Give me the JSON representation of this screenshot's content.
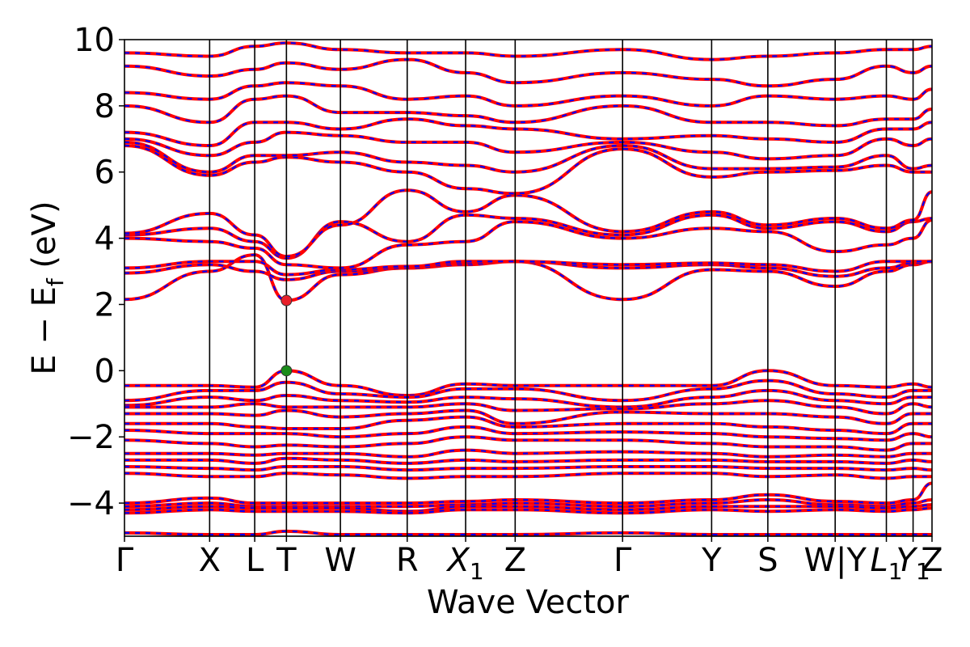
{
  "chart_data": {
    "type": "line",
    "xlabel": "Wave Vector",
    "ylabel": "E − E",
    "ylabel_sub": "f",
    "ylabel_unit": " (eV)",
    "ylim": [
      -5,
      10
    ],
    "yticks": [
      {
        "value": 10,
        "label": "10"
      },
      {
        "value": 8,
        "label": "8"
      },
      {
        "value": 6,
        "label": "6"
      },
      {
        "value": 4,
        "label": "4"
      },
      {
        "value": 2,
        "label": "2"
      },
      {
        "value": 0,
        "label": "0"
      },
      {
        "value": -2,
        "label": "−2"
      },
      {
        "value": -4,
        "label": "−4"
      }
    ],
    "kpath_span": 14.51,
    "kpoints": [
      {
        "label": "Γ",
        "k": 0.0
      },
      {
        "label": "X",
        "k": 1.53
      },
      {
        "label": "L",
        "k": 2.34
      },
      {
        "label": "T",
        "k": 2.91
      },
      {
        "label": "W",
        "k": 3.88
      },
      {
        "label": "R",
        "k": 5.08
      },
      {
        "label": "X",
        "sub": "1",
        "k": 6.13
      },
      {
        "label": "Z",
        "k": 7.02
      },
      {
        "label": "Γ",
        "k": 8.95
      },
      {
        "label": "Y",
        "k": 10.55
      },
      {
        "label": "S",
        "k": 11.56
      },
      {
        "label": "W|Y",
        "k": 12.77
      },
      {
        "label": "L",
        "sub": "1",
        "k": 13.69
      },
      {
        "label": "Y",
        "sub": "1",
        "k": 14.17
      },
      {
        "label": "Z",
        "k": 14.51
      }
    ],
    "series": [
      {
        "color": "#ff0000",
        "style": "solid"
      },
      {
        "color": "#0000ff",
        "style": "dashed"
      }
    ],
    "bands": [
      [
        2.15,
        3.0,
        3.5,
        2.12,
        2.9,
        3.1,
        3.2,
        3.3,
        2.15,
        3.05,
        3.0,
        2.55,
        3.0,
        3.2,
        3.3
      ],
      [
        2.95,
        3.2,
        3.0,
        2.75,
        3.0,
        3.1,
        3.25,
        3.3,
        3.1,
        3.2,
        3.1,
        2.85,
        3.1,
        3.25,
        3.3
      ],
      [
        3.1,
        3.3,
        3.3,
        2.9,
        3.05,
        3.15,
        3.3,
        3.3,
        3.2,
        3.25,
        3.2,
        3.0,
        3.3,
        3.3,
        3.3
      ],
      [
        4.0,
        3.9,
        3.7,
        3.2,
        3.1,
        3.8,
        3.9,
        4.5,
        4.0,
        4.3,
        4.2,
        3.6,
        3.8,
        4.0,
        4.55
      ],
      [
        4.1,
        4.3,
        3.9,
        3.4,
        4.5,
        3.9,
        4.7,
        4.6,
        4.1,
        4.7,
        4.3,
        4.5,
        4.2,
        4.5,
        4.6
      ],
      [
        4.15,
        4.75,
        4.1,
        3.45,
        4.4,
        5.45,
        4.8,
        5.3,
        4.2,
        4.8,
        4.4,
        4.6,
        4.3,
        4.55,
        5.4
      ],
      [
        6.8,
        5.9,
        6.3,
        6.45,
        6.3,
        6.0,
        5.5,
        5.35,
        6.7,
        5.85,
        6.0,
        6.05,
        6.2,
        6.0,
        6.0
      ],
      [
        6.9,
        6.0,
        6.5,
        6.5,
        6.6,
        6.3,
        6.2,
        6.0,
        6.8,
        6.1,
        6.1,
        6.15,
        6.5,
        6.1,
        6.2
      ],
      [
        7.0,
        6.5,
        6.9,
        7.2,
        7.1,
        6.9,
        6.9,
        6.6,
        6.9,
        6.6,
        6.4,
        6.5,
        7.0,
        6.8,
        7.0
      ],
      [
        7.2,
        6.8,
        7.5,
        7.5,
        7.3,
        7.6,
        7.4,
        7.3,
        7.0,
        7.1,
        7.0,
        6.9,
        7.3,
        7.3,
        7.5
      ],
      [
        8.0,
        7.5,
        8.2,
        8.3,
        7.8,
        7.8,
        7.7,
        7.5,
        8.0,
        7.5,
        7.5,
        7.4,
        7.6,
        7.6,
        7.9
      ],
      [
        8.4,
        8.2,
        8.6,
        8.7,
        8.6,
        8.2,
        8.3,
        8.0,
        8.3,
        8.0,
        8.3,
        8.2,
        8.3,
        8.2,
        8.5
      ],
      [
        9.2,
        8.9,
        9.1,
        9.3,
        9.1,
        9.4,
        9.0,
        8.7,
        9.0,
        8.8,
        8.6,
        8.8,
        9.2,
        9.0,
        9.2
      ],
      [
        9.6,
        9.5,
        9.8,
        9.9,
        9.7,
        9.6,
        9.6,
        9.5,
        9.7,
        9.4,
        9.5,
        9.6,
        9.7,
        9.7,
        9.8
      ],
      [
        -0.45,
        -0.45,
        -0.5,
        0.0,
        -0.45,
        -0.75,
        -0.4,
        -0.45,
        -0.45,
        -0.45,
        0.0,
        -0.45,
        -0.5,
        -0.4,
        -0.5
      ],
      [
        -0.9,
        -0.6,
        -0.6,
        -0.35,
        -0.7,
        -0.8,
        -0.55,
        -0.55,
        -0.9,
        -0.55,
        -0.3,
        -0.7,
        -0.8,
        -0.6,
        -0.6
      ],
      [
        -1.05,
        -0.8,
        -0.9,
        -0.75,
        -0.9,
        -0.95,
        -0.8,
        -0.85,
        -1.1,
        -0.8,
        -0.6,
        -0.9,
        -1.0,
        -0.8,
        -0.8
      ],
      [
        -1.1,
        -1.1,
        -1.0,
        -1.1,
        -1.1,
        -1.1,
        -1.0,
        -1.2,
        -1.15,
        -1.0,
        -0.9,
        -1.1,
        -1.3,
        -1.0,
        -1.1
      ],
      [
        -1.3,
        -1.3,
        -1.35,
        -1.2,
        -1.4,
        -1.3,
        -1.2,
        -1.6,
        -1.25,
        -1.3,
        -1.3,
        -1.4,
        -1.6,
        -1.3,
        -1.3
      ],
      [
        -1.6,
        -1.6,
        -1.7,
        -1.75,
        -1.75,
        -1.5,
        -1.4,
        -1.7,
        -1.6,
        -1.6,
        -1.7,
        -1.8,
        -1.9,
        -1.6,
        -1.6
      ],
      [
        -1.8,
        -1.9,
        -1.9,
        -1.9,
        -2.0,
        -1.9,
        -1.7,
        -1.9,
        -1.85,
        -1.9,
        -2.0,
        -2.05,
        -2.1,
        -1.9,
        -2.0
      ],
      [
        -2.1,
        -2.2,
        -2.3,
        -2.25,
        -2.3,
        -2.2,
        -2.0,
        -2.1,
        -2.1,
        -2.2,
        -2.3,
        -2.3,
        -2.4,
        -2.2,
        -2.2
      ],
      [
        -2.5,
        -2.5,
        -2.55,
        -2.5,
        -2.5,
        -2.6,
        -2.4,
        -2.5,
        -2.45,
        -2.5,
        -2.6,
        -2.55,
        -2.6,
        -2.5,
        -2.5
      ],
      [
        -2.7,
        -2.7,
        -2.8,
        -2.65,
        -2.7,
        -2.8,
        -2.7,
        -2.75,
        -2.7,
        -2.7,
        -2.75,
        -2.75,
        -2.8,
        -2.7,
        -2.75
      ],
      [
        -2.9,
        -2.95,
        -3.0,
        -2.9,
        -2.9,
        -3.0,
        -2.95,
        -2.95,
        -2.9,
        -2.9,
        -2.95,
        -2.95,
        -3.0,
        -2.95,
        -3.0
      ],
      [
        -3.1,
        -3.2,
        -3.2,
        -3.1,
        -3.15,
        -3.25,
        -3.2,
        -3.2,
        -3.1,
        -3.1,
        -3.2,
        -3.15,
        -3.25,
        -3.2,
        -3.2
      ],
      [
        -4.0,
        -3.85,
        -4.0,
        -4.0,
        -4.0,
        -4.0,
        -3.95,
        -3.9,
        -4.0,
        -3.9,
        -3.75,
        -3.95,
        -4.0,
        -3.9,
        -3.4
      ],
      [
        -4.1,
        -4.0,
        -4.1,
        -4.1,
        -4.1,
        -4.1,
        -4.05,
        -4.0,
        -4.1,
        -4.0,
        -3.9,
        -4.05,
        -4.1,
        -4.0,
        -3.9
      ],
      [
        -4.2,
        -4.1,
        -4.15,
        -4.15,
        -4.15,
        -4.25,
        -4.1,
        -4.1,
        -4.2,
        -4.1,
        -4.1,
        -4.1,
        -4.15,
        -4.1,
        -4.05
      ],
      [
        -4.3,
        -4.2,
        -4.25,
        -4.25,
        -4.25,
        -4.3,
        -4.2,
        -4.2,
        -4.3,
        -4.2,
        -4.25,
        -4.2,
        -4.25,
        -4.2,
        -4.15
      ],
      [
        -4.9,
        -4.95,
        -4.95,
        -4.85,
        -4.95,
        -4.95,
        -4.95,
        -4.95,
        -4.9,
        -4.95,
        -4.95,
        -4.95,
        -4.95,
        -4.95,
        -4.95
      ]
    ],
    "markers": [
      {
        "name": "cbm",
        "k": 2.91,
        "e": 2.12,
        "color": "#e8202a"
      },
      {
        "name": "vbm",
        "k": 2.91,
        "e": 0.0,
        "color": "#1a8c1a"
      }
    ]
  }
}
